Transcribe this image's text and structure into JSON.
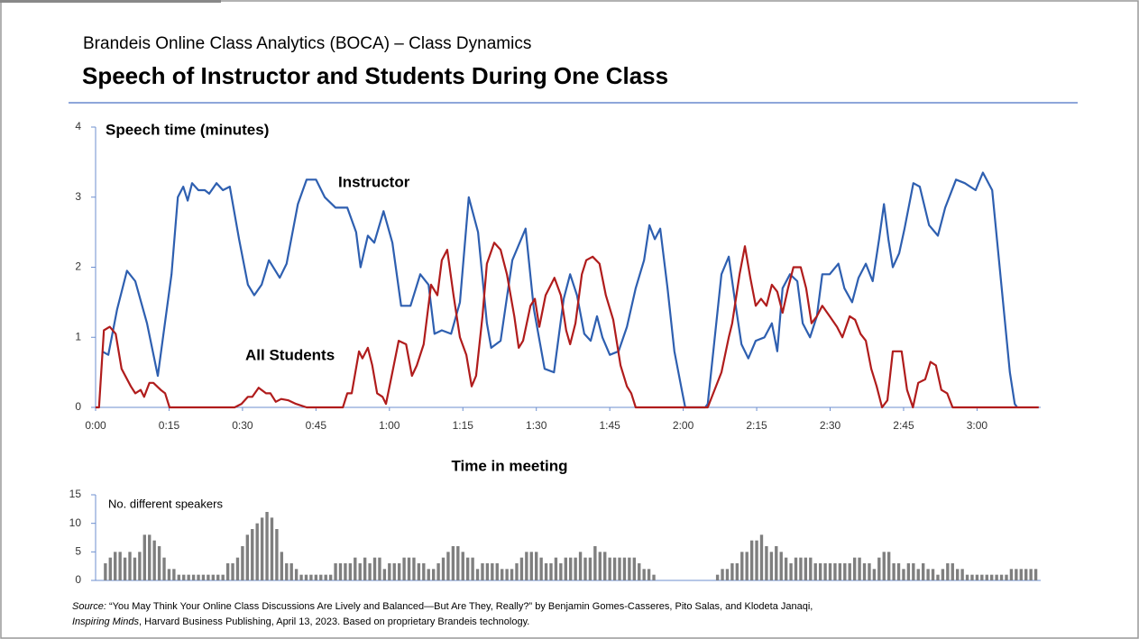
{
  "header": {
    "subtitle": "Brandeis Online Class Analytics (BOCA) – Class Dynamics",
    "title": "Speech of Instructor and Students During One Class"
  },
  "chart_data": [
    {
      "type": "line",
      "y_label": "Speech time (minutes)",
      "x_label": "Time in meeting",
      "xlim": [
        0,
        193
      ],
      "xticks": [
        {
          "value": 0,
          "label": "0:00"
        },
        {
          "value": 15,
          "label": "0:15"
        },
        {
          "value": 30,
          "label": "0:30"
        },
        {
          "value": 45,
          "label": "0:45"
        },
        {
          "value": 60,
          "label": "1:00"
        },
        {
          "value": 75,
          "label": "1:15"
        },
        {
          "value": 90,
          "label": "1:30"
        },
        {
          "value": 105,
          "label": "1:45"
        },
        {
          "value": 120,
          "label": "2:00"
        },
        {
          "value": 135,
          "label": "2:15"
        },
        {
          "value": 150,
          "label": "2:30"
        },
        {
          "value": 165,
          "label": "2:45"
        },
        {
          "value": 180,
          "label": "3:00"
        }
      ],
      "ylim": [
        0,
        4
      ],
      "yticks": [
        0,
        1,
        2,
        3,
        4
      ],
      "series": [
        {
          "name": "Instructor",
          "color": "#2e5fb0",
          "x": [
            1.3,
            2.6,
            4.4,
            6.4,
            8.1,
            10.5,
            12.7,
            15.5,
            16.8,
            17.9,
            18.8,
            19.7,
            21.0,
            22.3,
            23.2,
            24.7,
            26.0,
            27.4,
            29.3,
            31.1,
            32.4,
            33.9,
            35.4,
            37.6,
            39.0,
            41.3,
            43.1,
            45.0,
            46.8,
            49.0,
            51.4,
            53.2,
            54.1,
            55.6,
            56.9,
            58.8,
            60.6,
            62.4,
            64.3,
            66.3,
            68.0,
            69.2,
            70.7,
            72.6,
            74.4,
            76.2,
            78.1,
            79.9,
            80.8,
            82.7,
            85.1,
            87.8,
            89.5,
            91.7,
            93.6,
            95.6,
            96.9,
            98.3,
            99.8,
            101.1,
            102.4,
            103.5,
            105.0,
            106.8,
            108.5,
            110.3,
            112.0,
            113.1,
            114.2,
            115.3,
            116.8,
            118.2,
            119.7,
            120.4,
            124.5,
            125.0,
            127.8,
            129.3,
            130.6,
            131.9,
            133.3,
            134.8,
            136.6,
            138.1,
            139.2,
            140.3,
            141.8,
            143.3,
            144.4,
            145.9,
            147.3,
            148.4,
            149.9,
            151.7,
            152.9,
            154.5,
            155.8,
            157.3,
            158.7,
            160.0,
            161.0,
            161.9,
            162.8,
            164.1,
            165.2,
            167.0,
            168.3,
            170.2,
            172.0,
            173.5,
            175.7,
            177.5,
            179.7,
            181.2,
            183.1,
            184.9,
            186.7,
            187.7,
            188.2
          ],
          "values": [
            0.8,
            0.75,
            1.4,
            1.95,
            1.8,
            1.2,
            0.45,
            1.9,
            3.0,
            3.15,
            2.95,
            3.2,
            3.1,
            3.1,
            3.05,
            3.2,
            3.1,
            3.15,
            2.4,
            1.75,
            1.6,
            1.75,
            2.1,
            1.85,
            2.05,
            2.9,
            3.25,
            3.25,
            3.0,
            2.85,
            2.85,
            2.5,
            2.0,
            2.45,
            2.35,
            2.8,
            2.35,
            1.45,
            1.45,
            1.9,
            1.75,
            1.05,
            1.1,
            1.05,
            1.5,
            3.0,
            2.5,
            1.2,
            0.85,
            0.95,
            2.1,
            2.55,
            1.4,
            0.55,
            0.5,
            1.55,
            1.9,
            1.6,
            1.05,
            0.95,
            1.3,
            1.0,
            0.75,
            0.8,
            1.15,
            1.7,
            2.1,
            2.6,
            2.4,
            2.55,
            1.7,
            0.8,
            0.25,
            0,
            0,
            0.05,
            1.9,
            2.15,
            1.5,
            0.9,
            0.7,
            0.95,
            1.0,
            1.2,
            0.8,
            1.7,
            1.9,
            1.8,
            1.2,
            1.0,
            1.3,
            1.9,
            1.9,
            2.05,
            1.7,
            1.5,
            1.85,
            2.05,
            1.8,
            2.4,
            2.9,
            2.4,
            2.0,
            2.2,
            2.55,
            3.2,
            3.15,
            2.6,
            2.45,
            2.85,
            3.25,
            3.2,
            3.1,
            3.35,
            3.1,
            1.8,
            0.5,
            0.05,
            0
          ]
        },
        {
          "name": "All Students",
          "color": "#b01c1c",
          "x": [
            0,
            0.7,
            1.7,
            2.9,
            4.1,
            5.3,
            7.2,
            8.1,
            9.2,
            9.9,
            11.0,
            11.8,
            13.3,
            14.2,
            15.1,
            28.4,
            29.8,
            31.1,
            32.0,
            33.3,
            34.8,
            35.7,
            36.8,
            37.9,
            39.4,
            40.9,
            43.1,
            50.5,
            51.4,
            52.3,
            53.8,
            54.5,
            55.6,
            56.5,
            57.5,
            58.6,
            59.3,
            60.6,
            61.9,
            63.4,
            64.6,
            65.6,
            67.0,
            68.5,
            69.8,
            70.7,
            71.8,
            73.1,
            74.4,
            75.7,
            76.8,
            77.7,
            79.0,
            79.9,
            81.4,
            82.7,
            84.0,
            85.5,
            86.4,
            87.3,
            88.8,
            89.7,
            90.6,
            91.9,
            93.7,
            95.0,
            96.1,
            96.9,
            98.0,
            99.3,
            100.2,
            101.5,
            102.9,
            104.2,
            105.7,
            107.2,
            108.5,
            109.4,
            110.3,
            125.0,
            127.8,
            129.3,
            130.0,
            131.5,
            132.6,
            133.7,
            134.8,
            135.9,
            137.0,
            138.1,
            139.2,
            140.3,
            141.4,
            142.5,
            144.0,
            145.1,
            146.2,
            147.3,
            148.4,
            149.9,
            151.4,
            152.5,
            154.0,
            155.1,
            156.2,
            157.3,
            158.4,
            159.5,
            160.6,
            161.7,
            162.8,
            164.6,
            165.7,
            166.9,
            168.0,
            169.4,
            170.5,
            171.6,
            172.7,
            173.9,
            175.0,
            192.6
          ],
          "values": [
            0,
            0,
            1.1,
            1.15,
            1.05,
            0.55,
            0.3,
            0.2,
            0.25,
            0.15,
            0.35,
            0.35,
            0.25,
            0.2,
            0,
            0,
            0.05,
            0.15,
            0.15,
            0.28,
            0.2,
            0.2,
            0.08,
            0.12,
            0.1,
            0.05,
            0,
            0,
            0.2,
            0.2,
            0.8,
            0.7,
            0.85,
            0.6,
            0.2,
            0.15,
            0.05,
            0.5,
            0.95,
            0.9,
            0.45,
            0.6,
            0.9,
            1.75,
            1.6,
            2.1,
            2.25,
            1.6,
            1.0,
            0.75,
            0.3,
            0.45,
            1.3,
            2.05,
            2.35,
            2.25,
            1.9,
            1.3,
            0.85,
            0.95,
            1.45,
            1.55,
            1.15,
            1.6,
            1.85,
            1.6,
            1.1,
            0.9,
            1.2,
            1.9,
            2.1,
            2.15,
            2.05,
            1.6,
            1.25,
            0.6,
            0.3,
            0.2,
            0,
            0,
            0.5,
            1.0,
            1.2,
            1.9,
            2.3,
            1.85,
            1.45,
            1.55,
            1.45,
            1.75,
            1.65,
            1.35,
            1.7,
            2.0,
            2.0,
            1.7,
            1.2,
            1.3,
            1.45,
            1.3,
            1.15,
            1.0,
            1.3,
            1.25,
            1.05,
            0.95,
            0.55,
            0.3,
            0,
            0.1,
            0.8,
            0.8,
            0.25,
            0,
            0.35,
            0.4,
            0.65,
            0.6,
            0.25,
            0.2,
            0,
            0
          ]
        }
      ]
    },
    {
      "type": "bar",
      "y_label": "No. different speakers",
      "color": "#7f7f7f",
      "xlim": [
        0,
        193
      ],
      "ylim": [
        0,
        15
      ],
      "yticks": [
        0,
        5,
        10,
        15
      ],
      "x": [
        2,
        3,
        4,
        5,
        6,
        7,
        8,
        9,
        10,
        11,
        12,
        13,
        14,
        15,
        16,
        17,
        18,
        19,
        20,
        21,
        22,
        23,
        24,
        25,
        26,
        27,
        28,
        29,
        30,
        31,
        32,
        33,
        34,
        35,
        36,
        37,
        38,
        39,
        40,
        41,
        42,
        43,
        44,
        45,
        46,
        47,
        48,
        49,
        50,
        51,
        52,
        53,
        54,
        55,
        56,
        57,
        58,
        59,
        60,
        61,
        62,
        63,
        64,
        65,
        66,
        67,
        68,
        69,
        70,
        71,
        72,
        73,
        74,
        75,
        76,
        77,
        78,
        79,
        80,
        81,
        82,
        83,
        84,
        85,
        86,
        87,
        88,
        89,
        90,
        91,
        92,
        93,
        94,
        95,
        96,
        97,
        98,
        99,
        100,
        101,
        102,
        103,
        104,
        105,
        106,
        107,
        108,
        109,
        110,
        111,
        112,
        113,
        114,
        127,
        128,
        129,
        130,
        131,
        132,
        133,
        134,
        135,
        136,
        137,
        138,
        139,
        140,
        141,
        142,
        143,
        144,
        145,
        146,
        147,
        148,
        149,
        150,
        151,
        152,
        153,
        154,
        155,
        156,
        157,
        158,
        159,
        160,
        161,
        162,
        163,
        164,
        165,
        166,
        167,
        168,
        169,
        170,
        171,
        172,
        173,
        174,
        175,
        176,
        177,
        178,
        179,
        180,
        181,
        182,
        183,
        184,
        185,
        186,
        187,
        188,
        189,
        190,
        191,
        192
      ],
      "values": [
        3,
        4,
        5,
        5,
        4,
        5,
        4,
        5,
        8,
        8,
        7,
        6,
        4,
        2,
        2,
        1,
        1,
        1,
        1,
        1,
        1,
        1,
        1,
        1,
        1,
        3,
        3,
        4,
        6,
        8,
        9,
        10,
        11,
        12,
        11,
        9,
        5,
        3,
        3,
        2,
        1,
        1,
        1,
        1,
        1,
        1,
        1,
        3,
        3,
        3,
        3,
        4,
        3,
        4,
        3,
        4,
        4,
        2,
        3,
        3,
        3,
        4,
        4,
        4,
        3,
        3,
        2,
        2,
        3,
        4,
        5,
        6,
        6,
        5,
        4,
        4,
        2,
        3,
        3,
        3,
        3,
        2,
        2,
        2,
        3,
        4,
        5,
        5,
        5,
        4,
        3,
        3,
        4,
        3,
        4,
        4,
        4,
        5,
        4,
        4,
        6,
        5,
        5,
        4,
        4,
        4,
        4,
        4,
        4,
        3,
        2,
        2,
        1,
        1,
        2,
        2,
        3,
        3,
        5,
        5,
        7,
        7,
        8,
        6,
        5,
        6,
        5,
        4,
        3,
        4,
        4,
        4,
        4,
        3,
        3,
        3,
        3,
        3,
        3,
        3,
        3,
        4,
        4,
        3,
        3,
        2,
        4,
        5,
        5,
        3,
        3,
        2,
        3,
        3,
        2,
        3,
        2,
        2,
        1,
        2,
        3,
        3,
        2,
        2,
        1,
        1,
        1,
        1,
        1,
        1,
        1,
        1,
        1,
        2,
        2,
        2,
        2,
        2,
        2
      ]
    }
  ],
  "source": {
    "label": "Source:",
    "line1": " “You May Think Your Online Class Discussions Are Lively and Balanced—But Are They, Really?” by Benjamin Gomes-Casseres, Pito Salas, and Klodeta Janaqi,",
    "journal": "Inspiring Minds",
    "line2": ", Harvard Business Publishing, April 13, 2023. Based on proprietary Brandeis technology."
  }
}
